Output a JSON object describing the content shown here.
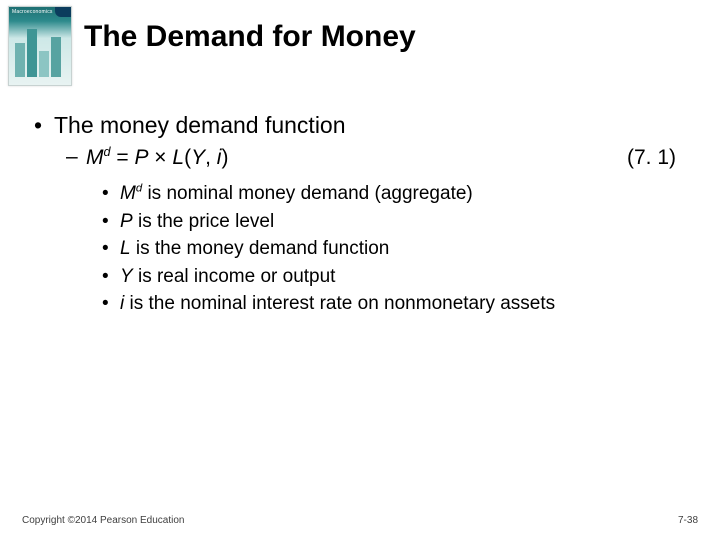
{
  "thumb": {
    "label": "Macroeconomics"
  },
  "title": "The Demand for Money",
  "bullet1": "The money demand function",
  "equation": {
    "lhs_base": "M",
    "lhs_sup": "d",
    "eq": " = ",
    "p": "P",
    "times": " × ",
    "l": "L",
    "open": "(",
    "y": "Y",
    "comma": ", ",
    "i": "i",
    "close": ")",
    "ref": "(7. 1)"
  },
  "defs": {
    "d0_a": "M",
    "d0_sup": "d",
    "d0_b": " is nominal money demand (aggregate)",
    "d1_a": "P",
    "d1_b": " is the price level",
    "d2_a": "L",
    "d2_b": " is the money demand function",
    "d3_a": "Y",
    "d3_b": " is real income or output",
    "d4_a": "i",
    "d4_b": " is the nominal interest rate on nonmonetary assets"
  },
  "footer": {
    "left": "Copyright ©2014 Pearson Education",
    "right": "7-38"
  }
}
